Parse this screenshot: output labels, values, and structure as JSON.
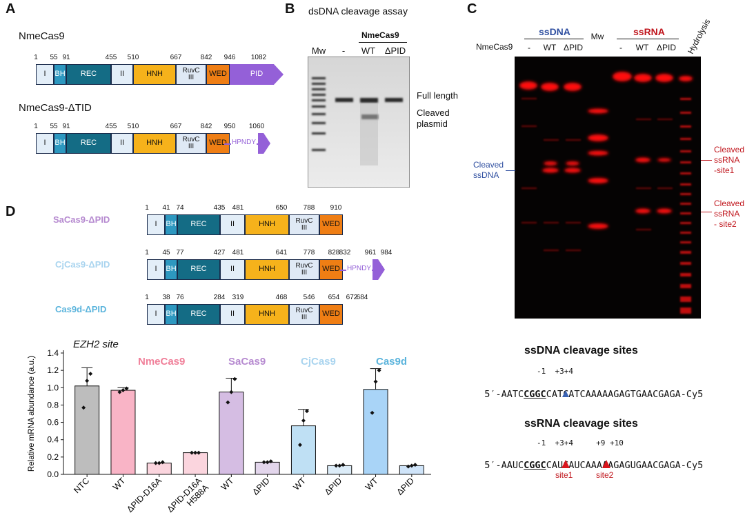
{
  "panelA": {
    "label": "A",
    "constructs": [
      {
        "name": "NmeCas9",
        "domains": [
          "I",
          "BH",
          "REC",
          "II",
          "HNH",
          "RuvC\nIII",
          "WED",
          "PID"
        ],
        "positions": [
          "1",
          "55",
          "91",
          "455",
          "510",
          "667",
          "842",
          "946",
          "1082"
        ]
      },
      {
        "name": "NmeCas9-ΔTID",
        "domains": [
          "I",
          "BH",
          "REC",
          "II",
          "HNH",
          "RuvC\nIII",
          "WED"
        ],
        "positions": [
          "1",
          "55",
          "91",
          "455",
          "510",
          "667",
          "842",
          "950",
          "1060"
        ],
        "linker": "HPNDY"
      }
    ]
  },
  "panelB": {
    "label": "B",
    "title": "dsDNA cleavage assay",
    "group": "NmeCas9",
    "lanes": [
      "Mw",
      "-",
      "WT",
      "ΔPID"
    ],
    "annotations": [
      "Full length",
      "Cleaved\nplasmid"
    ]
  },
  "panelC": {
    "label": "C",
    "groups": [
      "ssDNA",
      "ssRNA"
    ],
    "row_label": "NmeCas9",
    "lanes": [
      "-",
      "WT",
      "ΔPID",
      "Mw",
      "-",
      "WT",
      "ΔPID",
      "Hydrolysis"
    ],
    "ann_left": "Cleaved\nssDNA",
    "ann_site1": "Cleaved\nssRNA\n-site1",
    "ann_site2": "Cleaved\nssRNA\n- site2",
    "dna_title": "ssDNA cleavage sites",
    "dna_marks": "-1  +3+4",
    "dna_seq_pre": "5′-AATC",
    "dna_seq_u": "CGGC",
    "dna_seq_post": "CATCATCAAAAAGAGTGAACGAGA-Cy5",
    "rna_title": "ssRNA cleavage sites",
    "rna_marks": "-1  +3+4     +9 +10",
    "rna_seq_pre": "5′-AAUC",
    "rna_seq_u": "CGGC",
    "rna_seq_post": "CAUCAUCAAAAAGAGUGAACGAGA-Cy5",
    "site1": "site1",
    "site2": "site2"
  },
  "panelD": {
    "label": "D",
    "constructs": [
      {
        "name": "SaCas9-ΔPID",
        "color": "#b68ad0",
        "domains": [
          "I",
          "BH",
          "REC",
          "II",
          "HNH",
          "RuvC\nIII",
          "WED"
        ],
        "positions": [
          "1",
          "41",
          "74",
          "435",
          "481",
          "650",
          "788",
          "910"
        ]
      },
      {
        "name": "CjCas9-ΔPID",
        "color": "#a9d4ef",
        "domains": [
          "I",
          "BH",
          "REC",
          "II",
          "HNH",
          "RuvC\nIII",
          "WED"
        ],
        "positions": [
          "1",
          "45",
          "77",
          "427",
          "481",
          "641",
          "778",
          "828",
          "832",
          "961",
          "984"
        ],
        "linker": "HPNDY"
      },
      {
        "name": "Cas9d-ΔPID",
        "color": "#5bb4dc",
        "domains": [
          "I",
          "BH",
          "REC",
          "II",
          "HNH",
          "RuvC\nIII",
          "WED"
        ],
        "positions": [
          "1",
          "38",
          "76",
          "284",
          "319",
          "468",
          "546",
          "654",
          "672",
          "684"
        ]
      }
    ],
    "group_labels": [
      {
        "text": "NmeCas9",
        "color": "#f07f99"
      },
      {
        "text": "SaCas9",
        "color": "#b68ad0"
      },
      {
        "text": "CjCas9",
        "color": "#a9d4ef"
      },
      {
        "text": "Cas9d",
        "color": "#5bb4dc"
      }
    ]
  },
  "chart_data": {
    "type": "bar",
    "title": "EZH2 site",
    "ylabel": "Relative mRNA abundance (a.u.)",
    "ylim": [
      0,
      1.4
    ],
    "yticks": [
      "0.0",
      "0.2",
      "0.4",
      "0.6",
      "0.8",
      "1.0",
      "1.2",
      "1.4"
    ],
    "categories": [
      "NTC",
      "WT",
      "ΔPID-D16A",
      "ΔPID-D16A\nH588A",
      "WT",
      "ΔPID",
      "WT",
      "ΔPID",
      "WT",
      "ΔPID"
    ],
    "values": [
      1.02,
      0.97,
      0.13,
      0.25,
      0.95,
      0.14,
      0.56,
      0.1,
      0.98,
      0.1
    ],
    "errors": [
      0.21,
      0.03,
      0.0,
      0.0,
      0.16,
      0.0,
      0.19,
      0.0,
      0.24,
      0.0
    ],
    "colors": [
      "#bdbdbd",
      "#f9b4c6",
      "#fbd5de",
      "#fbd5de",
      "#d5bde3",
      "#e3d6ec",
      "#bfe0f4",
      "#dcecf8",
      "#a9d4f7",
      "#cfe4f9"
    ],
    "points": [
      [
        0.77,
        1.08,
        1.16
      ],
      [
        0.95,
        0.97,
        0.99
      ],
      [
        0.13,
        0.13,
        0.14
      ],
      [
        0.25,
        0.25,
        0.25
      ],
      [
        0.83,
        0.95,
        1.1
      ],
      [
        0.14,
        0.14,
        0.15
      ],
      [
        0.34,
        0.62,
        0.73
      ],
      [
        0.1,
        0.1,
        0.11
      ],
      [
        0.71,
        1.07,
        1.2
      ],
      [
        0.09,
        0.1,
        0.11
      ]
    ]
  }
}
